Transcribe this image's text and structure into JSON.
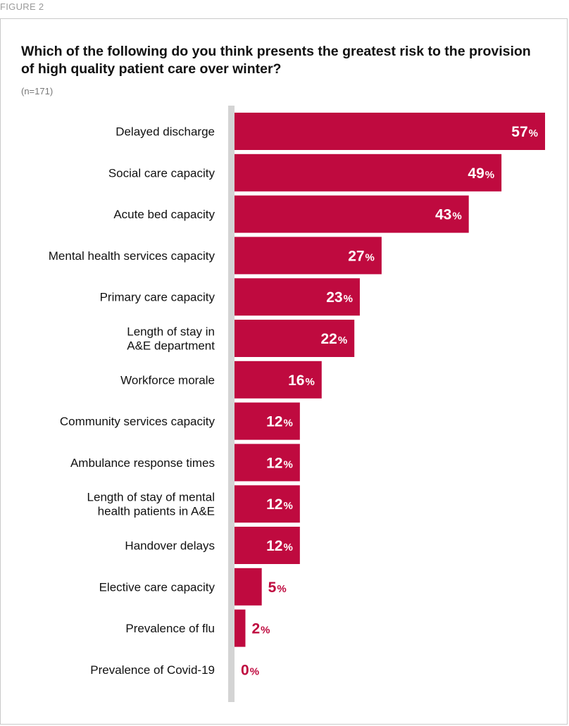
{
  "figure_label": "FIGURE 2",
  "chart_data": {
    "type": "bar",
    "orientation": "horizontal",
    "title": "Which of the following do you think presents the greatest risk to the provision of high quality patient care over winter?",
    "subtitle": "(n=171)",
    "categories": [
      "Delayed discharge",
      "Social care capacity",
      "Acute bed capacity",
      "Mental health services capacity",
      "Primary care capacity",
      "Length of stay in\nA&E department",
      "Workforce morale",
      "Community services capacity",
      "Ambulance response times",
      "Length of stay of mental\nhealth patients in A&E",
      "Handover delays",
      "Elective care capacity",
      "Prevalence of flu",
      "Prevalence of Covid-19"
    ],
    "values": [
      57,
      49,
      43,
      27,
      23,
      22,
      16,
      12,
      12,
      12,
      12,
      5,
      2,
      0
    ],
    "value_suffix": "%",
    "xlim": [
      0,
      57
    ],
    "bar_color": "#bf0a3f",
    "axis_bar_color": "#d4d4d4",
    "legend": "none",
    "grid": false
  }
}
